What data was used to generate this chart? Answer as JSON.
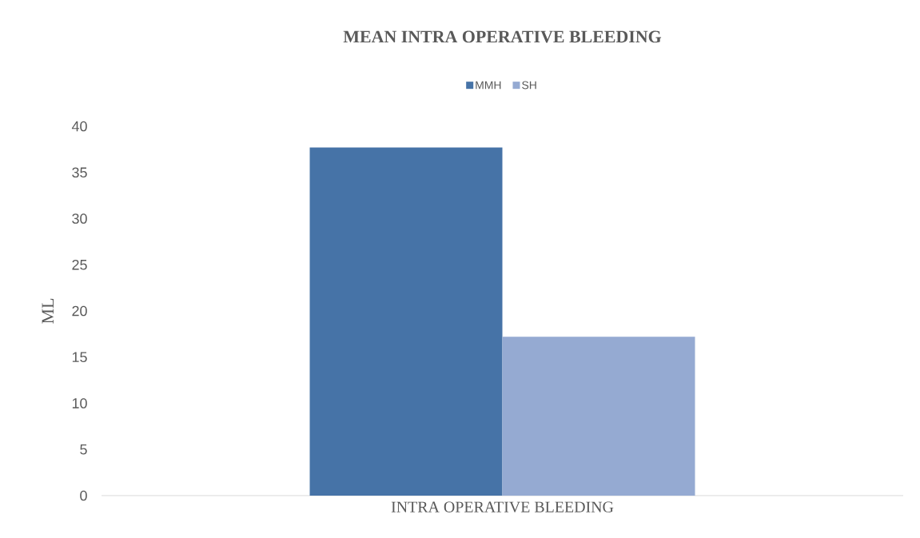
{
  "chart_data": {
    "type": "bar",
    "title": "MEAN INTRA OPERATIVE BLEEDING",
    "ylabel": "ML",
    "categories": [
      "INTRA OPERATIVE BLEEDING"
    ],
    "series": [
      {
        "name": "MMH",
        "color": "#4673a7",
        "values": [
          37.7
        ]
      },
      {
        "name": "SH",
        "color": "#95aad2",
        "values": [
          17.2
        ]
      }
    ],
    "ylim": [
      0,
      40
    ],
    "yticks": [
      0,
      5,
      10,
      15,
      20,
      25,
      30,
      35,
      40
    ],
    "legend": "top"
  }
}
